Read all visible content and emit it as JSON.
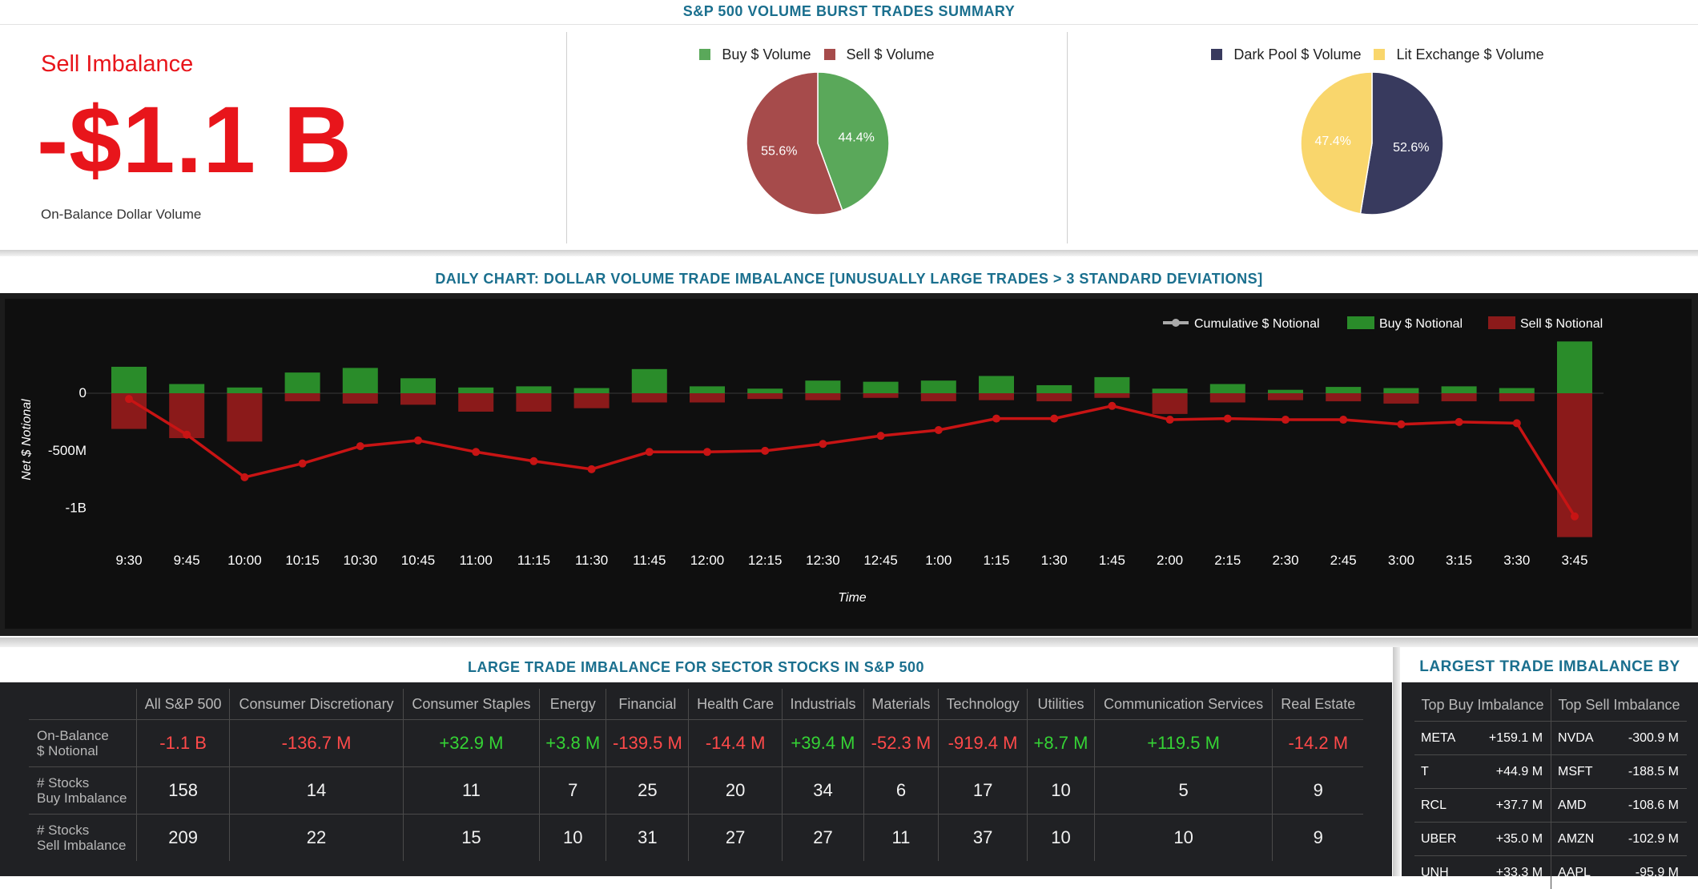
{
  "summary": {
    "title": "S&P 500 VOLUME BURST TRADES SUMMARY",
    "imbalance_label": "Sell Imbalance",
    "imbalance_value": "-$1.1 B",
    "imbalance_sub": "On-Balance Dollar Volume",
    "colors": {
      "buy": "#5aa85a",
      "sell": "#a64b4b",
      "dark": "#383a5e",
      "lit": "#f9d66c",
      "negative_text": "#e8151b"
    }
  },
  "daily_chart": {
    "title": "DAILY CHART: DOLLAR VOLUME TRADE IMBALANCE [UNUSUALLY LARGE TRADES > 3 STANDARD DEVIATIONS]",
    "colors": {
      "buy": "#2a8c2a",
      "sell": "#8b1a1a",
      "line": "#c81414",
      "cum_legend": "#aaaaaa"
    }
  },
  "chart_data": [
    {
      "type": "pie",
      "labels": [
        "Buy $ Volume",
        "Sell $ Volume"
      ],
      "values": [
        44.4,
        55.6
      ],
      "value_labels": [
        "44.4%",
        "55.6%"
      ]
    },
    {
      "type": "pie",
      "labels": [
        "Dark Pool $ Volume",
        "Lit Exchange $ Volume"
      ],
      "values": [
        52.6,
        47.4
      ],
      "value_labels": [
        "52.6%",
        "47.4%"
      ]
    },
    {
      "type": "bar",
      "xlabel": "Time",
      "ylabel": "Net $ Notional",
      "ylim": [
        -1300,
        450
      ],
      "yticks": [
        0,
        -500,
        -1000
      ],
      "ytick_labels": [
        "0",
        "-500M",
        "-1B"
      ],
      "categories": [
        "9:30",
        "9:45",
        "10:00",
        "10:15",
        "10:30",
        "10:45",
        "11:00",
        "11:15",
        "11:30",
        "11:45",
        "12:00",
        "12:15",
        "12:30",
        "12:45",
        "1:00",
        "1:15",
        "1:30",
        "1:45",
        "2:00",
        "2:15",
        "2:30",
        "2:45",
        "3:00",
        "3:15",
        "3:30",
        "3:45"
      ],
      "series": [
        {
          "name": "Cumulative $ Notional",
          "kind": "line",
          "values": [
            -50,
            -360,
            -730,
            -610,
            -460,
            -410,
            -510,
            -590,
            -660,
            -510,
            -510,
            -500,
            -440,
            -370,
            -320,
            -220,
            -220,
            -110,
            -230,
            -220,
            -230,
            -230,
            -270,
            -250,
            -260,
            -1070
          ]
        },
        {
          "name": "Buy $ Notional",
          "kind": "bar",
          "values": [
            230,
            80,
            50,
            180,
            220,
            130,
            50,
            60,
            45,
            210,
            60,
            40,
            110,
            100,
            110,
            150,
            70,
            140,
            40,
            80,
            30,
            55,
            45,
            60,
            45,
            450
          ]
        },
        {
          "name": "Sell $ Notional",
          "kind": "bar",
          "values": [
            -310,
            -390,
            -420,
            -70,
            -90,
            -100,
            -160,
            -160,
            -130,
            -80,
            -80,
            -50,
            -60,
            -40,
            -70,
            -60,
            -70,
            -40,
            -180,
            -80,
            -60,
            -70,
            -90,
            -70,
            -70,
            -1250
          ]
        }
      ]
    }
  ],
  "sector_section": {
    "title": "LARGE TRADE IMBALANCE FOR SECTOR STOCKS IN S&P 500",
    "columns": [
      "All S&P 500",
      "Consumer Discretionary",
      "Consumer Staples",
      "Energy",
      "Financial",
      "Health Care",
      "Industrials",
      "Materials",
      "Technology",
      "Utilities",
      "Communication Services",
      "Real Estate"
    ],
    "rows": [
      {
        "label1": "On-Balance",
        "label2": "$ Notional",
        "colored": true,
        "values": [
          "-1.1 B",
          "-136.7 M",
          "+32.9 M",
          "+3.8 M",
          "-139.5 M",
          "-14.4 M",
          "+39.4 M",
          "-52.3 M",
          "-919.4 M",
          "+8.7 M",
          "+119.5 M",
          "-14.2 M"
        ]
      },
      {
        "label1": "# Stocks",
        "label2": "Buy Imbalance",
        "colored": false,
        "values": [
          "158",
          "14",
          "11",
          "7",
          "25",
          "20",
          "34",
          "6",
          "17",
          "10",
          "5",
          "9"
        ]
      },
      {
        "label1": "# Stocks",
        "label2": "Sell Imbalance",
        "colored": false,
        "values": [
          "209",
          "22",
          "15",
          "10",
          "31",
          "27",
          "27",
          "11",
          "37",
          "10",
          "10",
          "9"
        ]
      }
    ]
  },
  "stock_section": {
    "title": "LARGEST TRADE IMBALANCE BY STOCK",
    "buy_header": "Top Buy Imbalance",
    "sell_header": "Top Sell Imbalance",
    "rows": [
      {
        "buy_ticker": "META",
        "buy_value": "+159.1 M",
        "sell_ticker": "NVDA",
        "sell_value": "-300.9 M"
      },
      {
        "buy_ticker": "T",
        "buy_value": "+44.9 M",
        "sell_ticker": "MSFT",
        "sell_value": "-188.5 M"
      },
      {
        "buy_ticker": "RCL",
        "buy_value": "+37.7 M",
        "sell_ticker": "AMD",
        "sell_value": "-108.6 M"
      },
      {
        "buy_ticker": "UBER",
        "buy_value": "+35.0 M",
        "sell_ticker": "AMZN",
        "sell_value": "-102.9 M"
      },
      {
        "buy_ticker": "UNH",
        "buy_value": "+33.3 M",
        "sell_ticker": "AAPL",
        "sell_value": "-95.9 M"
      }
    ]
  }
}
